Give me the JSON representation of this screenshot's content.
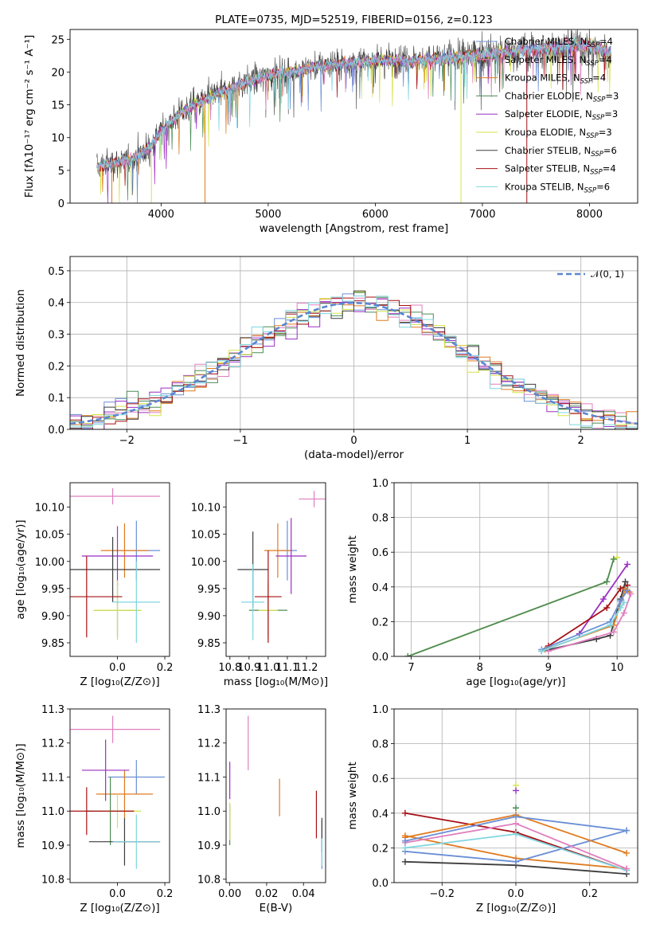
{
  "colors": {
    "kroupa_miles": "#e07b1f",
    "chabrier_elodie": "#4d8b55",
    "salpeter_elodie": "#9a2fc2",
    "kroupa_elodie": "#d4e34a",
    "chabrier_stelib": "#3d3d3d",
    "salpeter_stelib": "#a61016",
    "kroupa_stelib": "#7fd6e0",
    "chabrier_miles": "#6b8fd6",
    "salpeter_miles": "#e07fbf",
    "gaussian": "#5b86d0"
  },
  "chart_data": [
    {
      "id": "spectrum",
      "type": "line",
      "title": "PLATE=0735, MJD=52519, FIBERID=0156, z=0.123",
      "xlabel": "wavelength [Angstrom, rest frame]",
      "ylabel": "Flux [fλ10⁻¹⁷ erg cm⁻² s⁻¹ A⁻¹]",
      "xlim": [
        3150,
        8450
      ],
      "ylim": [
        0,
        26.5
      ],
      "xticks": [
        4000,
        5000,
        6000,
        7000,
        8000
      ],
      "yticks": [
        0,
        5,
        10,
        15,
        20,
        25
      ],
      "legend_position": "top-right",
      "continuum": {
        "x": [
          3400,
          3500,
          3700,
          3900,
          4000,
          4200,
          4500,
          4800,
          5000,
          5200,
          5500,
          5800,
          6000,
          6300,
          6600,
          6900,
          7200,
          7500,
          7800,
          8000,
          8200
        ],
        "y": [
          5.5,
          6.0,
          6.5,
          8.5,
          11.0,
          14.0,
          16.5,
          18.5,
          19.5,
          20.0,
          21.0,
          21.5,
          21.8,
          21.8,
          22.0,
          22.5,
          23.0,
          23.5,
          24.0,
          24.0,
          23.0
        ]
      },
      "dips": [
        {
          "series": "kroupa_miles",
          "x": 3540,
          "y": 0
        },
        {
          "series": "kroupa_elodie",
          "x": 3910,
          "y": 0
        },
        {
          "series": "kroupa_miles",
          "x": 4410,
          "y": 0
        },
        {
          "series": "kroupa_elodie",
          "x": 6800,
          "y": 0
        },
        {
          "series": "salpeter_stelib",
          "x": 7415,
          "y": 0
        }
      ],
      "legend": [
        {
          "key": "chabrier_miles",
          "label": "Chabrier MILES, N",
          "sub": "SSP",
          "tail": "=4"
        },
        {
          "key": "salpeter_miles",
          "label": "Salpeter MILES, N",
          "sub": "SSP",
          "tail": "=4"
        },
        {
          "key": "kroupa_miles",
          "label": "Kroupa MILES, N",
          "sub": "SSP",
          "tail": "=4"
        },
        {
          "key": "chabrier_elodie",
          "label": "Chabrier ELODIE, N",
          "sub": "SSP",
          "tail": "=3"
        },
        {
          "key": "salpeter_elodie",
          "label": "Salpeter ELODIE, N",
          "sub": "SSP",
          "tail": "=3"
        },
        {
          "key": "kroupa_elodie",
          "label": "Kroupa ELODIE, N",
          "sub": "SSP",
          "tail": "=3"
        },
        {
          "key": "chabrier_stelib",
          "label": "Chabrier STELIB, N",
          "sub": "SSP",
          "tail": "=6"
        },
        {
          "key": "salpeter_stelib",
          "label": "Salpeter STELIB, N",
          "sub": "SSP",
          "tail": "=4"
        },
        {
          "key": "kroupa_stelib",
          "label": "Kroupa STELIB, N",
          "sub": "SSP",
          "tail": "=6"
        }
      ]
    },
    {
      "id": "residuals",
      "type": "line",
      "xlabel": "(data-model)/error",
      "ylabel": "Normed distribution",
      "xlim": [
        -2.5,
        2.5
      ],
      "ylim": [
        0,
        0.545
      ],
      "xticks": [
        -2,
        -1,
        0,
        1,
        2
      ],
      "yticks": [
        0.0,
        0.1,
        0.2,
        0.3,
        0.4,
        0.5
      ],
      "grid": true,
      "legend_position": "top-right",
      "gaussian_label": "𝒩(0, 1)",
      "bin_width": 0.1,
      "bin_start": -2.5
    },
    {
      "id": "age_vs_Z",
      "type": "scatter",
      "xlabel": "Z [log₁₀(Z/Z⊙)]",
      "ylabel": "age  [log₁₀(age/yr)]",
      "xlim": [
        -0.2,
        0.22
      ],
      "ylim": [
        9.825,
        10.145
      ],
      "xticks": [
        0.0,
        0.2
      ],
      "yticks": [
        9.85,
        9.9,
        9.95,
        10.0,
        10.05,
        10.1
      ],
      "points": [
        {
          "s": "chabrier_miles",
          "x": 0.08,
          "y": 10.02,
          "xerr": 0.1,
          "yerr": 0.055
        },
        {
          "s": "salpeter_miles",
          "x": -0.02,
          "y": 10.12,
          "xerr": 0.2,
          "yerr": 0.015
        },
        {
          "s": "kroupa_miles",
          "x": 0.03,
          "y": 10.02,
          "xerr": 0.1,
          "yerr": 0.05
        },
        {
          "s": "chabrier_elodie",
          "x": 0.0,
          "y": 9.91,
          "xerr": 0.1,
          "yerr": 0.05
        },
        {
          "s": "salpeter_elodie",
          "x": 0.0,
          "y": 10.01,
          "xerr": 0.15,
          "yerr": 0.055
        },
        {
          "s": "kroupa_elodie",
          "x": 0.0,
          "y": 9.91,
          "xerr": 0.1,
          "yerr": 0.055
        },
        {
          "s": "chabrier_stelib",
          "x": -0.02,
          "y": 9.985,
          "xerr": 0.2,
          "yerr": 0.06
        },
        {
          "s": "salpeter_stelib",
          "x": -0.13,
          "y": 9.935,
          "xerr": 0.15,
          "yerr": 0.075
        },
        {
          "s": "kroupa_stelib",
          "x": 0.08,
          "y": 9.925,
          "xerr": 0.1,
          "yerr": 0.075
        }
      ]
    },
    {
      "id": "age_vs_mass",
      "type": "scatter",
      "xlabel": "mass [log₁₀(M/M⊙)]",
      "ylabel": "",
      "xlim": [
        10.78,
        11.3
      ],
      "ylim": [
        9.825,
        10.145
      ],
      "xticks": [
        10.8,
        10.9,
        11.0,
        11.1,
        11.2
      ],
      "yticks": [
        9.85,
        9.9,
        9.95,
        10.0,
        10.05,
        10.1
      ],
      "points": [
        {
          "s": "chabrier_miles",
          "x": 11.1,
          "y": 10.02,
          "xerr": 0.05,
          "yerr": 0.055
        },
        {
          "s": "salpeter_miles",
          "x": 11.24,
          "y": 10.115,
          "xerr": 0.08,
          "yerr": 0.015
        },
        {
          "s": "kroupa_miles",
          "x": 11.05,
          "y": 10.02,
          "xerr": 0.07,
          "yerr": 0.05
        },
        {
          "s": "chabrier_elodie",
          "x": 11.0,
          "y": 9.91,
          "xerr": 0.1,
          "yerr": 0.05
        },
        {
          "s": "salpeter_elodie",
          "x": 11.12,
          "y": 10.01,
          "xerr": 0.08,
          "yerr": 0.07
        },
        {
          "s": "kroupa_elodie",
          "x": 11.0,
          "y": 9.91,
          "xerr": 0.05,
          "yerr": 0.055
        },
        {
          "s": "chabrier_stelib",
          "x": 10.92,
          "y": 9.985,
          "xerr": 0.08,
          "yerr": 0.07
        },
        {
          "s": "salpeter_stelib",
          "x": 11.0,
          "y": 9.935,
          "xerr": 0.07,
          "yerr": 0.085
        },
        {
          "s": "kroupa_stelib",
          "x": 10.92,
          "y": 9.925,
          "xerr": 0.06,
          "yerr": 0.07
        }
      ]
    },
    {
      "id": "weight_vs_age",
      "type": "line",
      "xlabel": "age  [log₁₀(age/yr)]",
      "ylabel": "mass weight",
      "xlim": [
        6.75,
        10.3
      ],
      "ylim": [
        0,
        1
      ],
      "xticks": [
        7,
        8,
        9,
        10
      ],
      "yticks": [
        0.0,
        0.2,
        0.4,
        0.6,
        0.8,
        1.0
      ],
      "grid": true,
      "series": [
        {
          "s": "kroupa_elodie",
          "x": [
            6.95,
            9.85,
            9.95,
            10.0
          ],
          "y": [
            0.0,
            0.43,
            0.56,
            0.57
          ]
        },
        {
          "s": "chabrier_elodie",
          "x": [
            6.95,
            9.85,
            9.95
          ],
          "y": [
            0.0,
            0.43,
            0.56
          ]
        },
        {
          "s": "salpeter_elodie",
          "x": [
            9.45,
            9.8,
            10.15
          ],
          "y": [
            0.13,
            0.33,
            0.53
          ]
        },
        {
          "s": "salpeter_stelib",
          "x": [
            9.0,
            9.85,
            10.05,
            10.15
          ],
          "y": [
            0.06,
            0.28,
            0.39,
            0.41
          ]
        },
        {
          "s": "chabrier_stelib",
          "x": [
            8.9,
            9.7,
            9.9,
            10.05,
            10.12
          ],
          "y": [
            0.03,
            0.1,
            0.12,
            0.33,
            0.43
          ]
        },
        {
          "s": "kroupa_miles",
          "x": [
            8.95,
            9.95,
            10.12,
            10.18
          ],
          "y": [
            0.04,
            0.18,
            0.39,
            0.37
          ]
        },
        {
          "s": "chabrier_miles",
          "x": [
            8.9,
            9.9,
            10.05,
            10.15
          ],
          "y": [
            0.04,
            0.2,
            0.32,
            0.38
          ]
        },
        {
          "s": "salpeter_miles",
          "x": [
            9.0,
            9.95,
            10.1,
            10.2
          ],
          "y": [
            0.03,
            0.14,
            0.25,
            0.36
          ]
        },
        {
          "s": "kroupa_stelib",
          "x": [
            8.9,
            9.9,
            10.05,
            10.1
          ],
          "y": [
            0.03,
            0.18,
            0.28,
            0.31
          ]
        }
      ]
    },
    {
      "id": "mass_vs_Z",
      "type": "scatter",
      "xlabel": "Z [log₁₀(Z/Z⊙)]",
      "ylabel": "mass [log₁₀(M/M⊙)]",
      "xlim": [
        -0.2,
        0.22
      ],
      "ylim": [
        10.79,
        11.3
      ],
      "xticks": [
        0.0,
        0.2
      ],
      "yticks": [
        10.8,
        10.9,
        11.0,
        11.1,
        11.2,
        11.3
      ],
      "points": [
        {
          "s": "chabrier_miles",
          "x": 0.08,
          "y": 11.1,
          "xerr": 0.12,
          "yerr": 0.05
        },
        {
          "s": "salpeter_miles",
          "x": -0.02,
          "y": 11.24,
          "xerr": 0.2,
          "yerr": 0.04
        },
        {
          "s": "kroupa_miles",
          "x": 0.03,
          "y": 11.05,
          "xerr": 0.12,
          "yerr": 0.07
        },
        {
          "s": "chabrier_elodie",
          "x": -0.03,
          "y": 11.0,
          "xerr": 0.1,
          "yerr": 0.1
        },
        {
          "s": "salpeter_elodie",
          "x": -0.05,
          "y": 11.12,
          "xerr": 0.1,
          "yerr": 0.09
        },
        {
          "s": "kroupa_elodie",
          "x": 0.0,
          "y": 11.0,
          "xerr": 0.1,
          "yerr": 0.05
        },
        {
          "s": "chabrier_stelib",
          "x": 0.03,
          "y": 10.91,
          "xerr": 0.15,
          "yerr": 0.07
        },
        {
          "s": "salpeter_stelib",
          "x": -0.13,
          "y": 11.0,
          "xerr": 0.2,
          "yerr": 0.07
        },
        {
          "s": "kroupa_stelib",
          "x": 0.08,
          "y": 10.91,
          "xerr": 0.1,
          "yerr": 0.08
        }
      ]
    },
    {
      "id": "mass_vs_ebv",
      "type": "scatter",
      "xlabel": "E(B-V)",
      "ylabel": "",
      "xlim": [
        -0.002,
        0.052
      ],
      "ylim": [
        10.79,
        11.3
      ],
      "xticks": [
        0.0,
        0.02,
        0.04
      ],
      "yticks": [
        10.8,
        10.9,
        11.0,
        11.1,
        11.2,
        11.3
      ],
      "points": [
        {
          "s": "chabrier_miles",
          "x": 0.05,
          "y": 10.9,
          "xerr": 0,
          "yerr": 0.07
        },
        {
          "s": "salpeter_miles",
          "x": 0.01,
          "y": 11.2,
          "xerr": 0,
          "yerr": 0.08
        },
        {
          "s": "kroupa_miles",
          "x": 0.027,
          "y": 11.04,
          "xerr": 0,
          "yerr": 0.055
        },
        {
          "s": "chabrier_elodie",
          "x": 0.0,
          "y": 10.96,
          "xerr": 0,
          "yerr": 0.06
        },
        {
          "s": "salpeter_elodie",
          "x": 0.0,
          "y": 11.09,
          "xerr": 0,
          "yerr": 0.055
        },
        {
          "s": "kroupa_elodie",
          "x": 0.0,
          "y": 10.97,
          "xerr": 0,
          "yerr": 0.055
        },
        {
          "s": "chabrier_stelib",
          "x": 0.05,
          "y": 10.93,
          "xerr": 0,
          "yerr": 0.05
        },
        {
          "s": "salpeter_stelib",
          "x": 0.047,
          "y": 10.99,
          "xerr": 0,
          "yerr": 0.07
        },
        {
          "s": "kroupa_stelib",
          "x": 0.05,
          "y": 10.88,
          "xerr": 0,
          "yerr": 0.04
        }
      ]
    },
    {
      "id": "weight_vs_Z",
      "type": "line",
      "xlabel": "Z [log₁₀(Z/Z⊙)]",
      "ylabel": "mass weight",
      "xlim": [
        -0.33,
        0.33
      ],
      "ylim": [
        0,
        1
      ],
      "xticks": [
        -0.2,
        0.0,
        0.2
      ],
      "yticks": [
        0.0,
        0.2,
        0.4,
        0.6,
        0.8,
        1.0
      ],
      "grid": true,
      "series": [
        {
          "s": "chabrier_stelib",
          "x": [
            -0.3,
            0.0,
            0.3
          ],
          "y": [
            0.12,
            0.1,
            0.05
          ]
        },
        {
          "s": "salpeter_stelib",
          "x": [
            -0.3,
            0.0,
            0.3
          ],
          "y": [
            0.4,
            0.29,
            0.07
          ]
        },
        {
          "s": "kroupa_miles",
          "x": [
            -0.3,
            0.0,
            0.3
          ],
          "y": [
            0.27,
            0.14,
            0.08
          ]
        },
        {
          "s": "chabrier_miles",
          "x": [
            -0.3,
            0.0,
            0.3
          ],
          "y": [
            0.18,
            0.12,
            0.3
          ]
        },
        {
          "s": "kroupa_stelib",
          "x": [
            -0.3,
            0.0,
            0.3
          ],
          "y": [
            0.2,
            0.28,
            0.07
          ]
        },
        {
          "s": "salpeter_miles",
          "x": [
            -0.3,
            0.0,
            0.3
          ],
          "y": [
            0.23,
            0.34,
            0.08
          ]
        },
        {
          "s": "kroupa_miles",
          "x": [
            -0.3,
            0.0,
            0.3
          ],
          "y": [
            0.26,
            0.39,
            0.17
          ]
        },
        {
          "s": "kroupa_elodie",
          "x": [
            0.0
          ],
          "y": [
            0.56
          ]
        },
        {
          "s": "chabrier_elodie",
          "x": [
            0.0
          ],
          "y": [
            0.43
          ]
        },
        {
          "s": "salpeter_elodie",
          "x": [
            0.0
          ],
          "y": [
            0.53
          ]
        },
        {
          "s": "chabrier_miles",
          "x": [
            -0.3,
            0.0,
            0.3
          ],
          "y": [
            0.24,
            0.38,
            0.3
          ]
        }
      ]
    }
  ]
}
